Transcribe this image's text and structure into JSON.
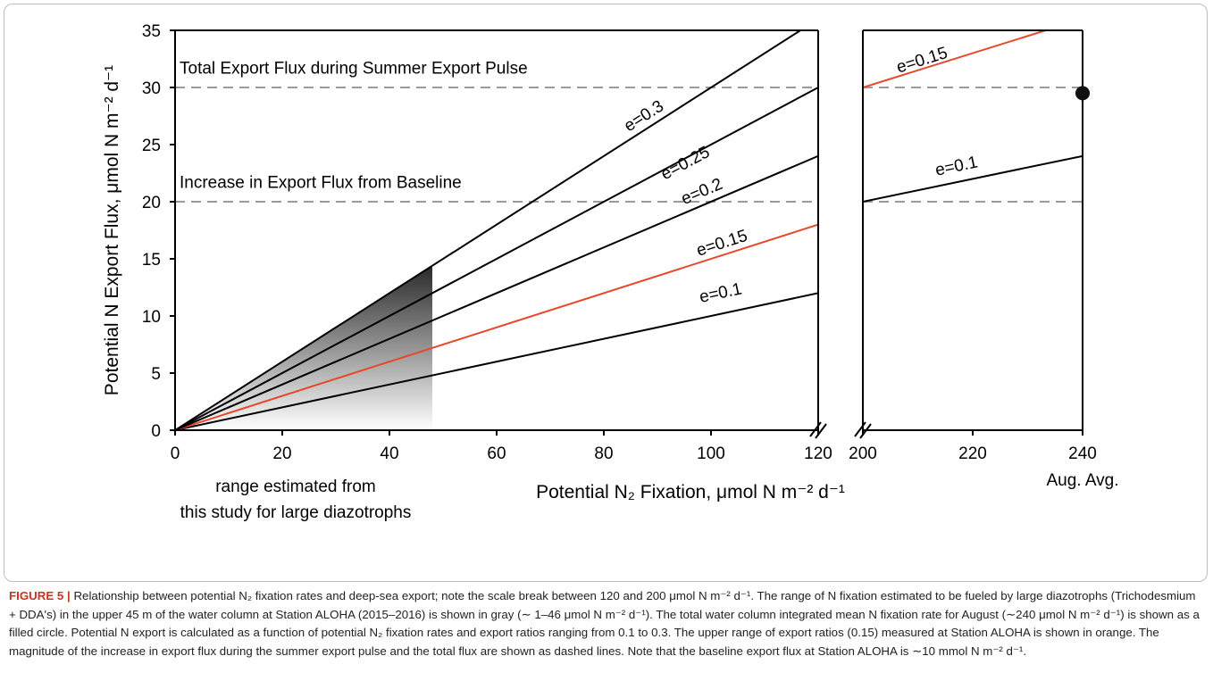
{
  "chart_data": [
    {
      "type": "line",
      "xlabel": "Potential N₂ Fixation, μmol N m⁻² d⁻¹",
      "ylabel": "Potential N Export Flux, μmol N m⁻² d⁻¹",
      "xlim": [
        0,
        120
      ],
      "ylim": [
        0,
        35
      ],
      "x_ticks": [
        0,
        20,
        40,
        60,
        80,
        100,
        120
      ],
      "y_ticks": [
        0,
        5,
        10,
        15,
        20,
        25,
        30,
        35
      ],
      "grid": false,
      "series": [
        {
          "name": "e=0.1",
          "color": "#000000",
          "x": [
            0,
            120
          ],
          "y": [
            0,
            12
          ]
        },
        {
          "name": "e=0.15",
          "color": "#e8472b",
          "x": [
            0,
            120
          ],
          "y": [
            0,
            18
          ]
        },
        {
          "name": "e=0.2",
          "color": "#000000",
          "x": [
            0,
            120
          ],
          "y": [
            0,
            24
          ]
        },
        {
          "name": "e=0.25",
          "color": "#000000",
          "x": [
            0,
            120
          ],
          "y": [
            0,
            30
          ]
        },
        {
          "name": "e=0.3",
          "color": "#000000",
          "x": [
            0,
            116.7
          ],
          "y": [
            0,
            35
          ]
        }
      ],
      "reference_lines": [
        {
          "label": "Total Export Flux during Summer Export Pulse",
          "y": 30,
          "style": "dashed",
          "color": "#999999"
        },
        {
          "label": "Increase in Export Flux from Baseline",
          "y": 20,
          "style": "dashed",
          "color": "#999999"
        }
      ],
      "shaded_region": {
        "x": [
          0,
          48
        ],
        "label": "range estimated from this study for large diazotrophs",
        "fill": "gray gradient"
      }
    },
    {
      "type": "line",
      "xlim": [
        200,
        240
      ],
      "ylim": [
        0,
        35
      ],
      "x_ticks": [
        200,
        220,
        240
      ],
      "x_extra_label": "Aug. Avg.",
      "series": [
        {
          "name": "e=0.1",
          "color": "#000000",
          "x": [
            200,
            240
          ],
          "y": [
            20,
            24
          ]
        },
        {
          "name": "e=0.15",
          "color": "#e8472b",
          "x": [
            200,
            233.3
          ],
          "y": [
            30,
            35
          ]
        }
      ],
      "reference_lines": [
        {
          "y": 30
        },
        {
          "y": 20
        }
      ],
      "points": [
        {
          "x": 240,
          "y": 29.5,
          "marker": "filled-circle"
        }
      ]
    }
  ],
  "caption": {
    "label": "FIGURE 5 |",
    "text": "Relationship between potential N₂ fixation rates and deep-sea export; note the scale break between 120 and 200 μmol N m⁻² d⁻¹. The range of N fixation estimated to be fueled by large diazotrophs (Trichodesmium + DDA's) in the upper 45 m of the water column at Station ALOHA (2015–2016) is shown in gray (∼ 1–46 μmol N m⁻² d⁻¹). The total water column integrated mean N fixation rate for August (∼240 μmol N m⁻² d⁻¹) is shown as a filled circle. Potential N export is calculated as a function of potential N₂ fixation rates and export ratios ranging from 0.1 to 0.3. The upper range of export ratios (0.15) measured at Station ALOHA is shown in orange. The magnitude of the increase in export flux during the summer export pulse and the total flux are shown as dashed lines. Note that the baseline export flux at Station ALOHA is ∼10 mmol N m⁻² d⁻¹."
  }
}
